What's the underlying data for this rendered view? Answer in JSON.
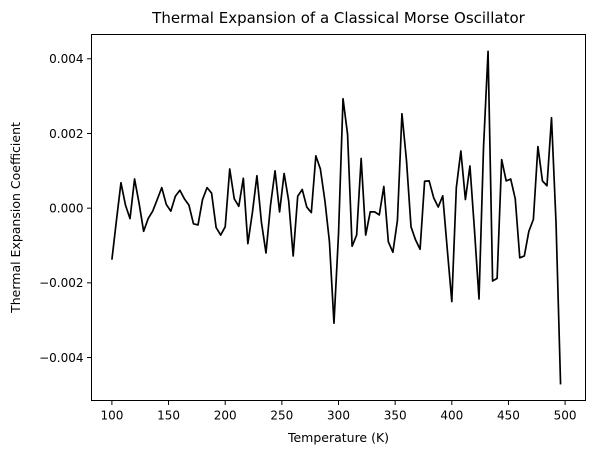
{
  "chart_data": {
    "type": "line",
    "title": "Thermal Expansion of a Classical Morse Oscillator",
    "xlabel": "Temperature (K)",
    "ylabel": "Thermal Expansion Coefficient",
    "xlim": [
      82,
      518
    ],
    "ylim": [
      -0.00515,
      0.00465
    ],
    "xticks": [
      100,
      150,
      200,
      250,
      300,
      350,
      400,
      450,
      500
    ],
    "xtick_labels": [
      "100",
      "150",
      "200",
      "250",
      "300",
      "350",
      "400",
      "450",
      "500"
    ],
    "yticks": [
      -0.004,
      -0.002,
      0.0,
      0.002,
      0.004
    ],
    "ytick_labels": [
      "−0.004",
      "−0.002",
      "0.000",
      "0.002",
      "0.004"
    ],
    "grid": false,
    "legend": "none",
    "series": [
      {
        "color": "#000000",
        "x": [
          100,
          104,
          108,
          112,
          116,
          120,
          124,
          128,
          132,
          136,
          140,
          144,
          148,
          152,
          156,
          160,
          164,
          168,
          172,
          176,
          180,
          184,
          188,
          192,
          196,
          200,
          204,
          208,
          212,
          216,
          220,
          224,
          228,
          232,
          236,
          240,
          244,
          248,
          252,
          256,
          260,
          264,
          268,
          272,
          276,
          280,
          284,
          288,
          292,
          296,
          300,
          304,
          308,
          312,
          316,
          320,
          324,
          328,
          332,
          336,
          340,
          344,
          348,
          352,
          356,
          360,
          364,
          368,
          372,
          376,
          380,
          384,
          388,
          392,
          396,
          400,
          404,
          408,
          412,
          416,
          420,
          424,
          428,
          432,
          436,
          440,
          444,
          448,
          452,
          456,
          460,
          464,
          468,
          472,
          476,
          480,
          484,
          488,
          492,
          496,
          500
        ],
        "y": [
          -0.00138,
          -0.00033,
          0.00068,
          8e-05,
          -0.00028,
          0.00078,
          0.00013,
          -0.00062,
          -0.00028,
          -8e-05,
          0.00023,
          0.00055,
          0.0001,
          -8e-05,
          0.00032,
          0.00048,
          0.00025,
          8e-05,
          -0.00042,
          -0.00045,
          0.00023,
          0.00055,
          0.0004,
          -0.00052,
          -0.00072,
          -0.0005,
          0.00105,
          0.00025,
          5e-05,
          0.0008,
          -0.00095,
          -0.00012,
          0.00087,
          -0.00038,
          -0.0012,
          8e-05,
          0.001,
          -0.0001,
          0.00093,
          0.0002,
          -0.00128,
          0.00032,
          0.0005,
          3e-05,
          -0.00012,
          0.0014,
          0.00105,
          0.0002,
          -0.0009,
          -0.00308,
          -0.0007,
          0.00293,
          0.00198,
          -0.00102,
          -0.00072,
          0.00133,
          -0.00072,
          -0.0001,
          -0.0001,
          -0.00018,
          0.00058,
          -0.0009,
          -0.00118,
          -0.00033,
          0.00253,
          0.00128,
          -0.0005,
          -0.00085,
          -0.0011,
          0.00072,
          0.00073,
          0.00028,
          3e-05,
          0.00033,
          -0.0011,
          -0.0025,
          0.00055,
          0.00153,
          0.00023,
          0.00113,
          -0.00058,
          -0.00243,
          0.00163,
          0.0042,
          -0.00195,
          -0.00188,
          0.0013,
          0.00073,
          0.00078,
          0.00025,
          -0.00133,
          -0.00128,
          -0.00062,
          -0.0003,
          0.00165,
          0.00073,
          0.0006,
          0.00242,
          -0.0004,
          -0.00472,
          null
        ]
      }
    ]
  }
}
